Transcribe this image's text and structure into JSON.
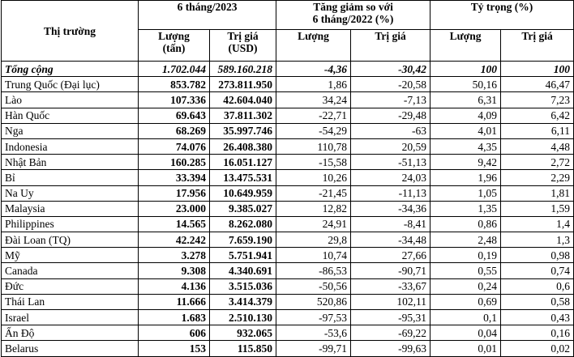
{
  "table": {
    "header": {
      "market": "Thị trường",
      "period": "6 tháng/2023",
      "change": "Tăng giảm so với\n6 tháng/2022 (%)",
      "share": "Tỷ trọng (%)",
      "sub": [
        "Lượng\n(tấn)",
        "Trị giá\n(USD)",
        "Lượng",
        "Trị giá",
        "Lượng",
        "Trị giá"
      ]
    },
    "total": [
      "Tổng cộng",
      "1.702.044",
      "589.160.218",
      "-4,36",
      "-30,42",
      "100",
      "100"
    ],
    "rows": [
      [
        "Trung Quốc (Đại lục)",
        "853.782",
        "273.811.950",
        "1,86",
        "-20,58",
        "50,16",
        "46,47"
      ],
      [
        "Lào",
        "107.336",
        "42.604.040",
        "34,24",
        "-7,13",
        "6,31",
        "7,23"
      ],
      [
        "Hàn Quốc",
        "69.643",
        "37.811.302",
        "-22,71",
        "-29,48",
        "4,09",
        "6,42"
      ],
      [
        "Nga",
        "68.269",
        "35.997.746",
        "-54,29",
        "-63",
        "4,01",
        "6,11"
      ],
      [
        "Indonesia",
        "74.076",
        "26.408.380",
        "110,78",
        "20,59",
        "4,35",
        "4,48"
      ],
      [
        "Nhật Bản",
        "160.285",
        "16.051.127",
        "-15,58",
        "-51,13",
        "9,42",
        "2,72"
      ],
      [
        "Bỉ",
        "33.394",
        "13.475.531",
        "10,26",
        "24,03",
        "1,96",
        "2,29"
      ],
      [
        "Na Uy",
        "17.956",
        "10.649.959",
        "-21,45",
        "-11,13",
        "1,05",
        "1,81"
      ],
      [
        "Malaysia",
        "23.000",
        "9.385.027",
        "12,82",
        "-34,36",
        "1,35",
        "1,59"
      ],
      [
        "Philippines",
        "14.565",
        "8.262.080",
        "24,91",
        "-8,41",
        "0,86",
        "1,4"
      ],
      [
        "Đài Loan (TQ)",
        "42.242",
        "7.659.190",
        "29,8",
        "-34,48",
        "2,48",
        "1,3"
      ],
      [
        "Mỹ",
        "3.278",
        "5.751.941",
        "10,74",
        "27,66",
        "0,19",
        "0,98"
      ],
      [
        "Canada",
        "9.308",
        "4.340.691",
        "-86,53",
        "-90,71",
        "0,55",
        "0,74"
      ],
      [
        "Đức",
        "4.136",
        "3.515.036",
        "-50,56",
        "-33,67",
        "0,24",
        "0,6"
      ],
      [
        "Thái Lan",
        "11.666",
        "3.414.379",
        "520,86",
        "102,11",
        "0,69",
        "0,58"
      ],
      [
        "Israel",
        "1.683",
        "2.510.130",
        "-97,53",
        "-95,31",
        "0,1",
        "0,43"
      ],
      [
        "Ấn Độ",
        "606",
        "932.065",
        "-53,6",
        "-69,22",
        "0,04",
        "0,16"
      ],
      [
        "Belarus",
        "153",
        "115.850",
        "-99,71",
        "-99,63",
        "0,01",
        "0,02"
      ]
    ]
  }
}
